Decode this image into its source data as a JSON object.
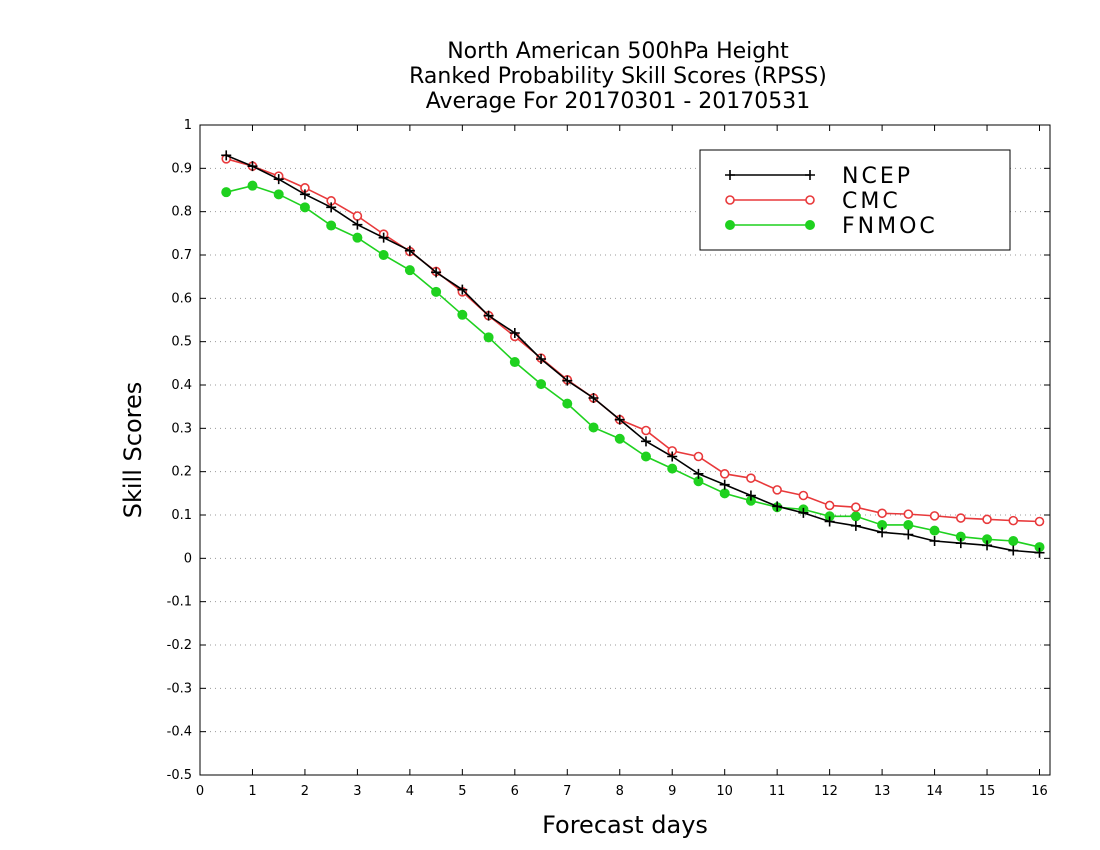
{
  "chart_data": {
    "type": "line",
    "title": [
      "North American 500hPa Height",
      "Ranked Probability Skill Scores (RPSS)",
      "Average For 20170301 - 20170531"
    ],
    "xlabel": "Forecast days",
    "ylabel": "Skill Scores",
    "xlim": [
      0,
      16.2
    ],
    "ylim": [
      -0.5,
      1
    ],
    "xticks": [
      "0",
      "1",
      "2",
      "3",
      "4",
      "5",
      "6",
      "7",
      "8",
      "9",
      "10",
      "11",
      "12",
      "13",
      "14",
      "15",
      "16"
    ],
    "yticks": [
      "1",
      "0.9",
      "0.8",
      "0.7",
      "0.6",
      "0.5",
      "0.4",
      "0.3",
      "0.2",
      "0.1",
      "0",
      "-0.1",
      "-0.2",
      "-0.3",
      "-0.4",
      "-0.5"
    ],
    "grid": "horizontal-dotted",
    "legend_position": "top-right",
    "x": [
      0.5,
      1,
      1.5,
      2,
      2.5,
      3,
      3.5,
      4,
      4.5,
      5,
      5.5,
      6,
      6.5,
      7,
      7.5,
      8,
      8.5,
      9,
      9.5,
      10,
      10.5,
      11,
      11.5,
      12,
      12.5,
      13,
      13.5,
      14,
      14.5,
      15,
      15.5,
      16
    ],
    "series": [
      {
        "name": "NCEP",
        "color": "#000000",
        "marker": "plus",
        "values": [
          0.93,
          0.905,
          0.875,
          0.84,
          0.81,
          0.77,
          0.74,
          0.71,
          0.66,
          0.62,
          0.56,
          0.52,
          0.46,
          0.41,
          0.37,
          0.32,
          0.27,
          0.235,
          0.195,
          0.17,
          0.145,
          0.12,
          0.105,
          0.085,
          0.075,
          0.06,
          0.055,
          0.04,
          0.035,
          0.03,
          0.018,
          0.013
        ]
      },
      {
        "name": "CMC",
        "color": "#e8393b",
        "marker": "open-circle",
        "values": [
          0.922,
          0.905,
          0.882,
          0.855,
          0.825,
          0.79,
          0.748,
          0.708,
          0.662,
          0.615,
          0.56,
          0.512,
          0.462,
          0.412,
          0.37,
          0.32,
          0.295,
          0.248,
          0.235,
          0.195,
          0.185,
          0.158,
          0.145,
          0.122,
          0.118,
          0.104,
          0.102,
          0.098,
          0.093,
          0.09,
          0.087,
          0.085
        ]
      },
      {
        "name": "FNMOC",
        "color": "#1fd11f",
        "marker": "filled-circle",
        "values": [
          0.845,
          0.86,
          0.84,
          0.81,
          0.768,
          0.74,
          0.7,
          0.665,
          0.615,
          0.562,
          0.51,
          0.453,
          0.402,
          0.357,
          0.302,
          0.276,
          0.235,
          0.207,
          0.178,
          0.15,
          0.133,
          0.118,
          0.113,
          0.097,
          0.097,
          0.077,
          0.077,
          0.064,
          0.05,
          0.044,
          0.04,
          0.026
        ]
      }
    ]
  }
}
